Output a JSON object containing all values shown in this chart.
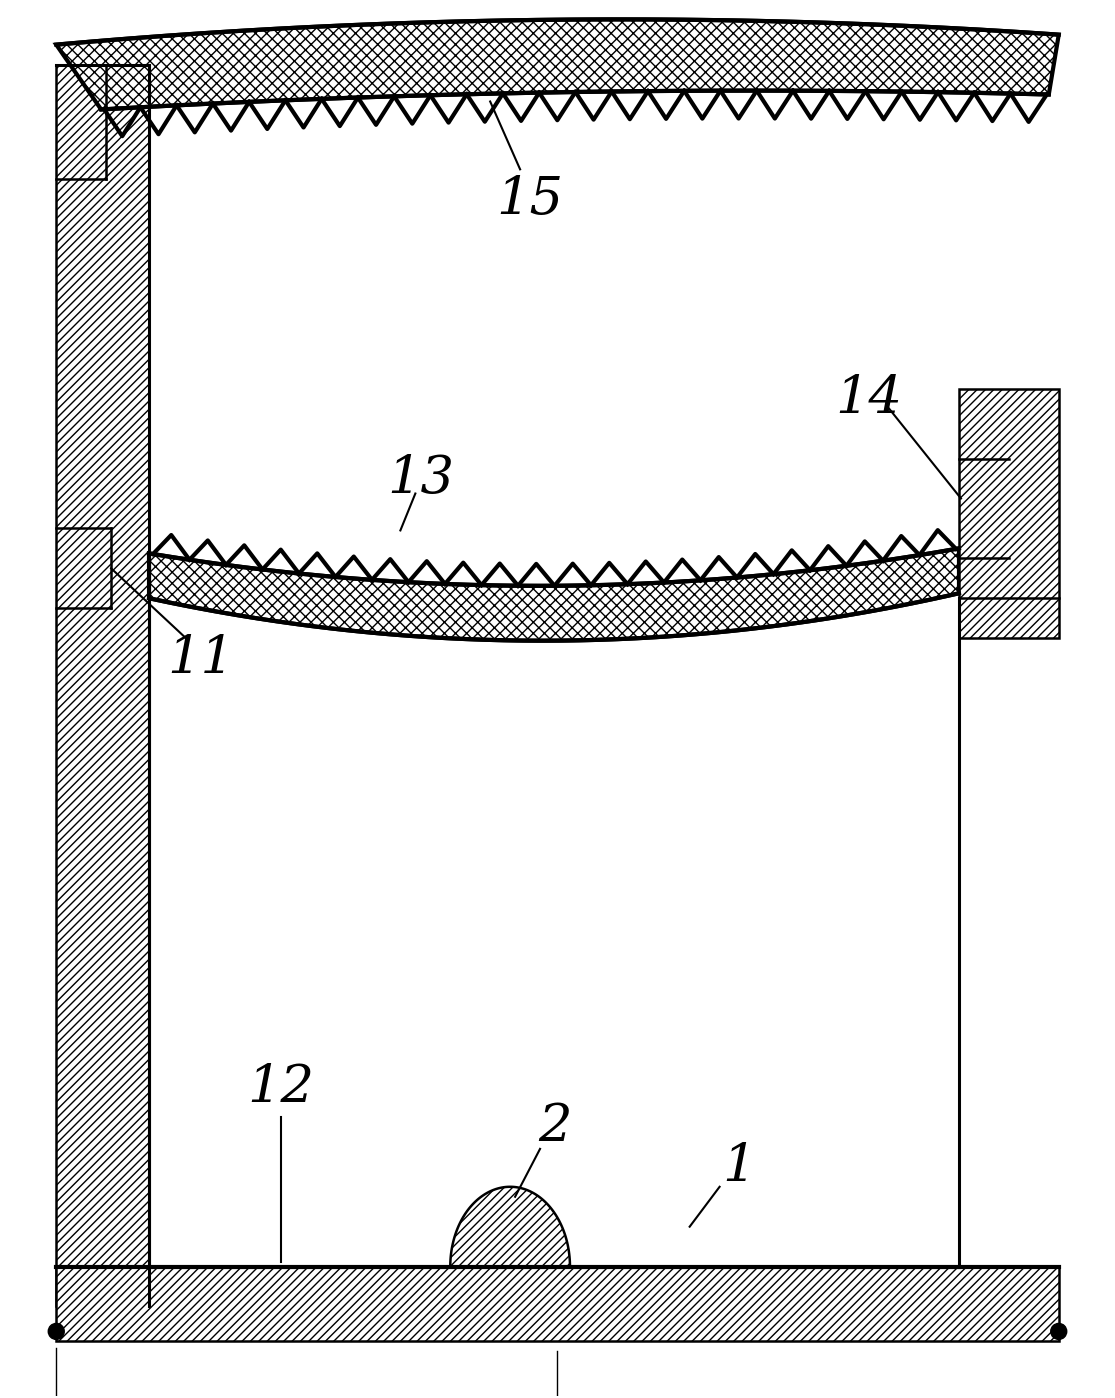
{
  "bg_color": "#ffffff",
  "line_color": "#000000",
  "fig_width": 11.15,
  "fig_height": 13.98,
  "lw": 1.8,
  "lw_thick": 3.0,
  "lw_med": 2.2
}
